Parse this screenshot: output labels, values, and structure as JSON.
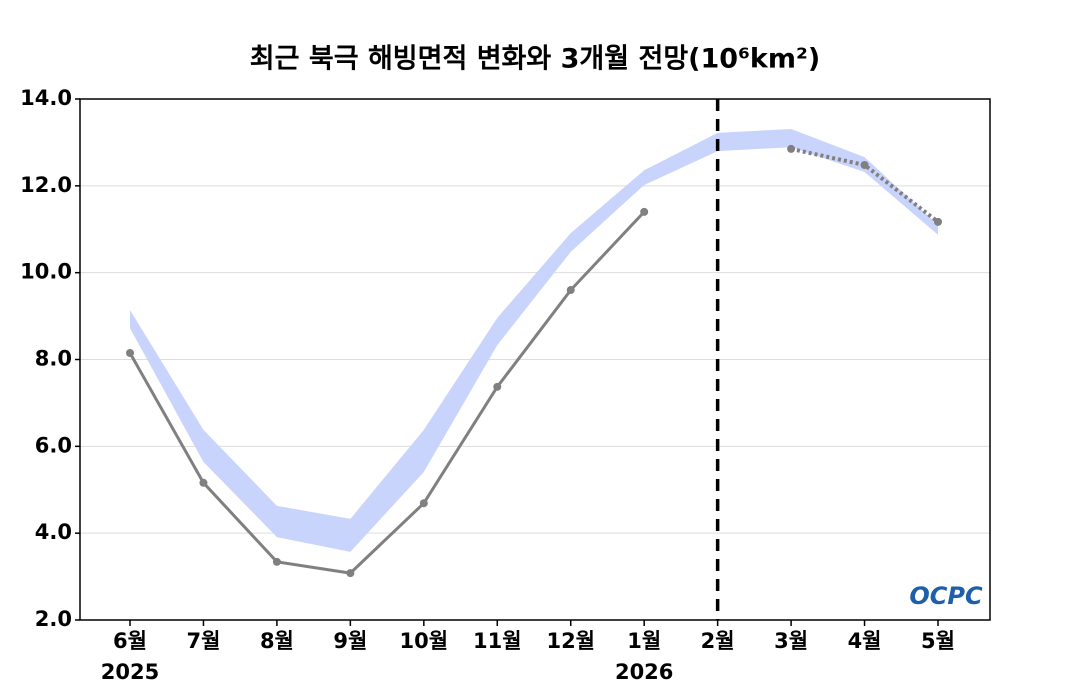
{
  "chart_data": {
    "type": "line",
    "title": "최근 북극 해빙면적 변화와 3개월 전망(10⁶km²)",
    "categories": [
      "6월",
      "7월",
      "8월",
      "9월",
      "10월",
      "11월",
      "12월",
      "1월",
      "2월",
      "3월",
      "4월",
      "5월"
    ],
    "year_labels": [
      "2025",
      null,
      null,
      null,
      null,
      null,
      null,
      "2026",
      null,
      null,
      null,
      null
    ],
    "band": {
      "color": "#c8d4fc",
      "upper": [
        9.14,
        6.38,
        4.63,
        4.33,
        6.38,
        8.96,
        10.91,
        12.36,
        13.22,
        13.31,
        12.66,
        11.1
      ],
      "lower": [
        8.72,
        5.64,
        3.91,
        3.57,
        5.41,
        8.33,
        10.48,
        12.02,
        12.8,
        12.89,
        12.32,
        10.87
      ]
    },
    "series": [
      {
        "color": "#808080",
        "style": "solid",
        "values": [
          8.15,
          5.16,
          3.34,
          3.08,
          4.69,
          7.37,
          9.6,
          11.4,
          null,
          null,
          null,
          null
        ]
      },
      {
        "color": "#808080",
        "style": "dotted",
        "values": [
          null,
          null,
          null,
          null,
          null,
          null,
          null,
          null,
          null,
          12.85,
          12.48,
          11.17
        ]
      }
    ],
    "divider_index": 8,
    "ylim": [
      2,
      14
    ],
    "yticks": [
      {
        "value": 2,
        "label": "2.0"
      },
      {
        "value": 4,
        "label": "4.0"
      },
      {
        "value": 6,
        "label": "6.0"
      },
      {
        "value": 8,
        "label": "8.0"
      },
      {
        "value": 10,
        "label": "10.0"
      },
      {
        "value": 12,
        "label": "12.0"
      },
      {
        "value": 14,
        "label": "14.0"
      }
    ],
    "grid": true,
    "logo": "OCPC"
  }
}
